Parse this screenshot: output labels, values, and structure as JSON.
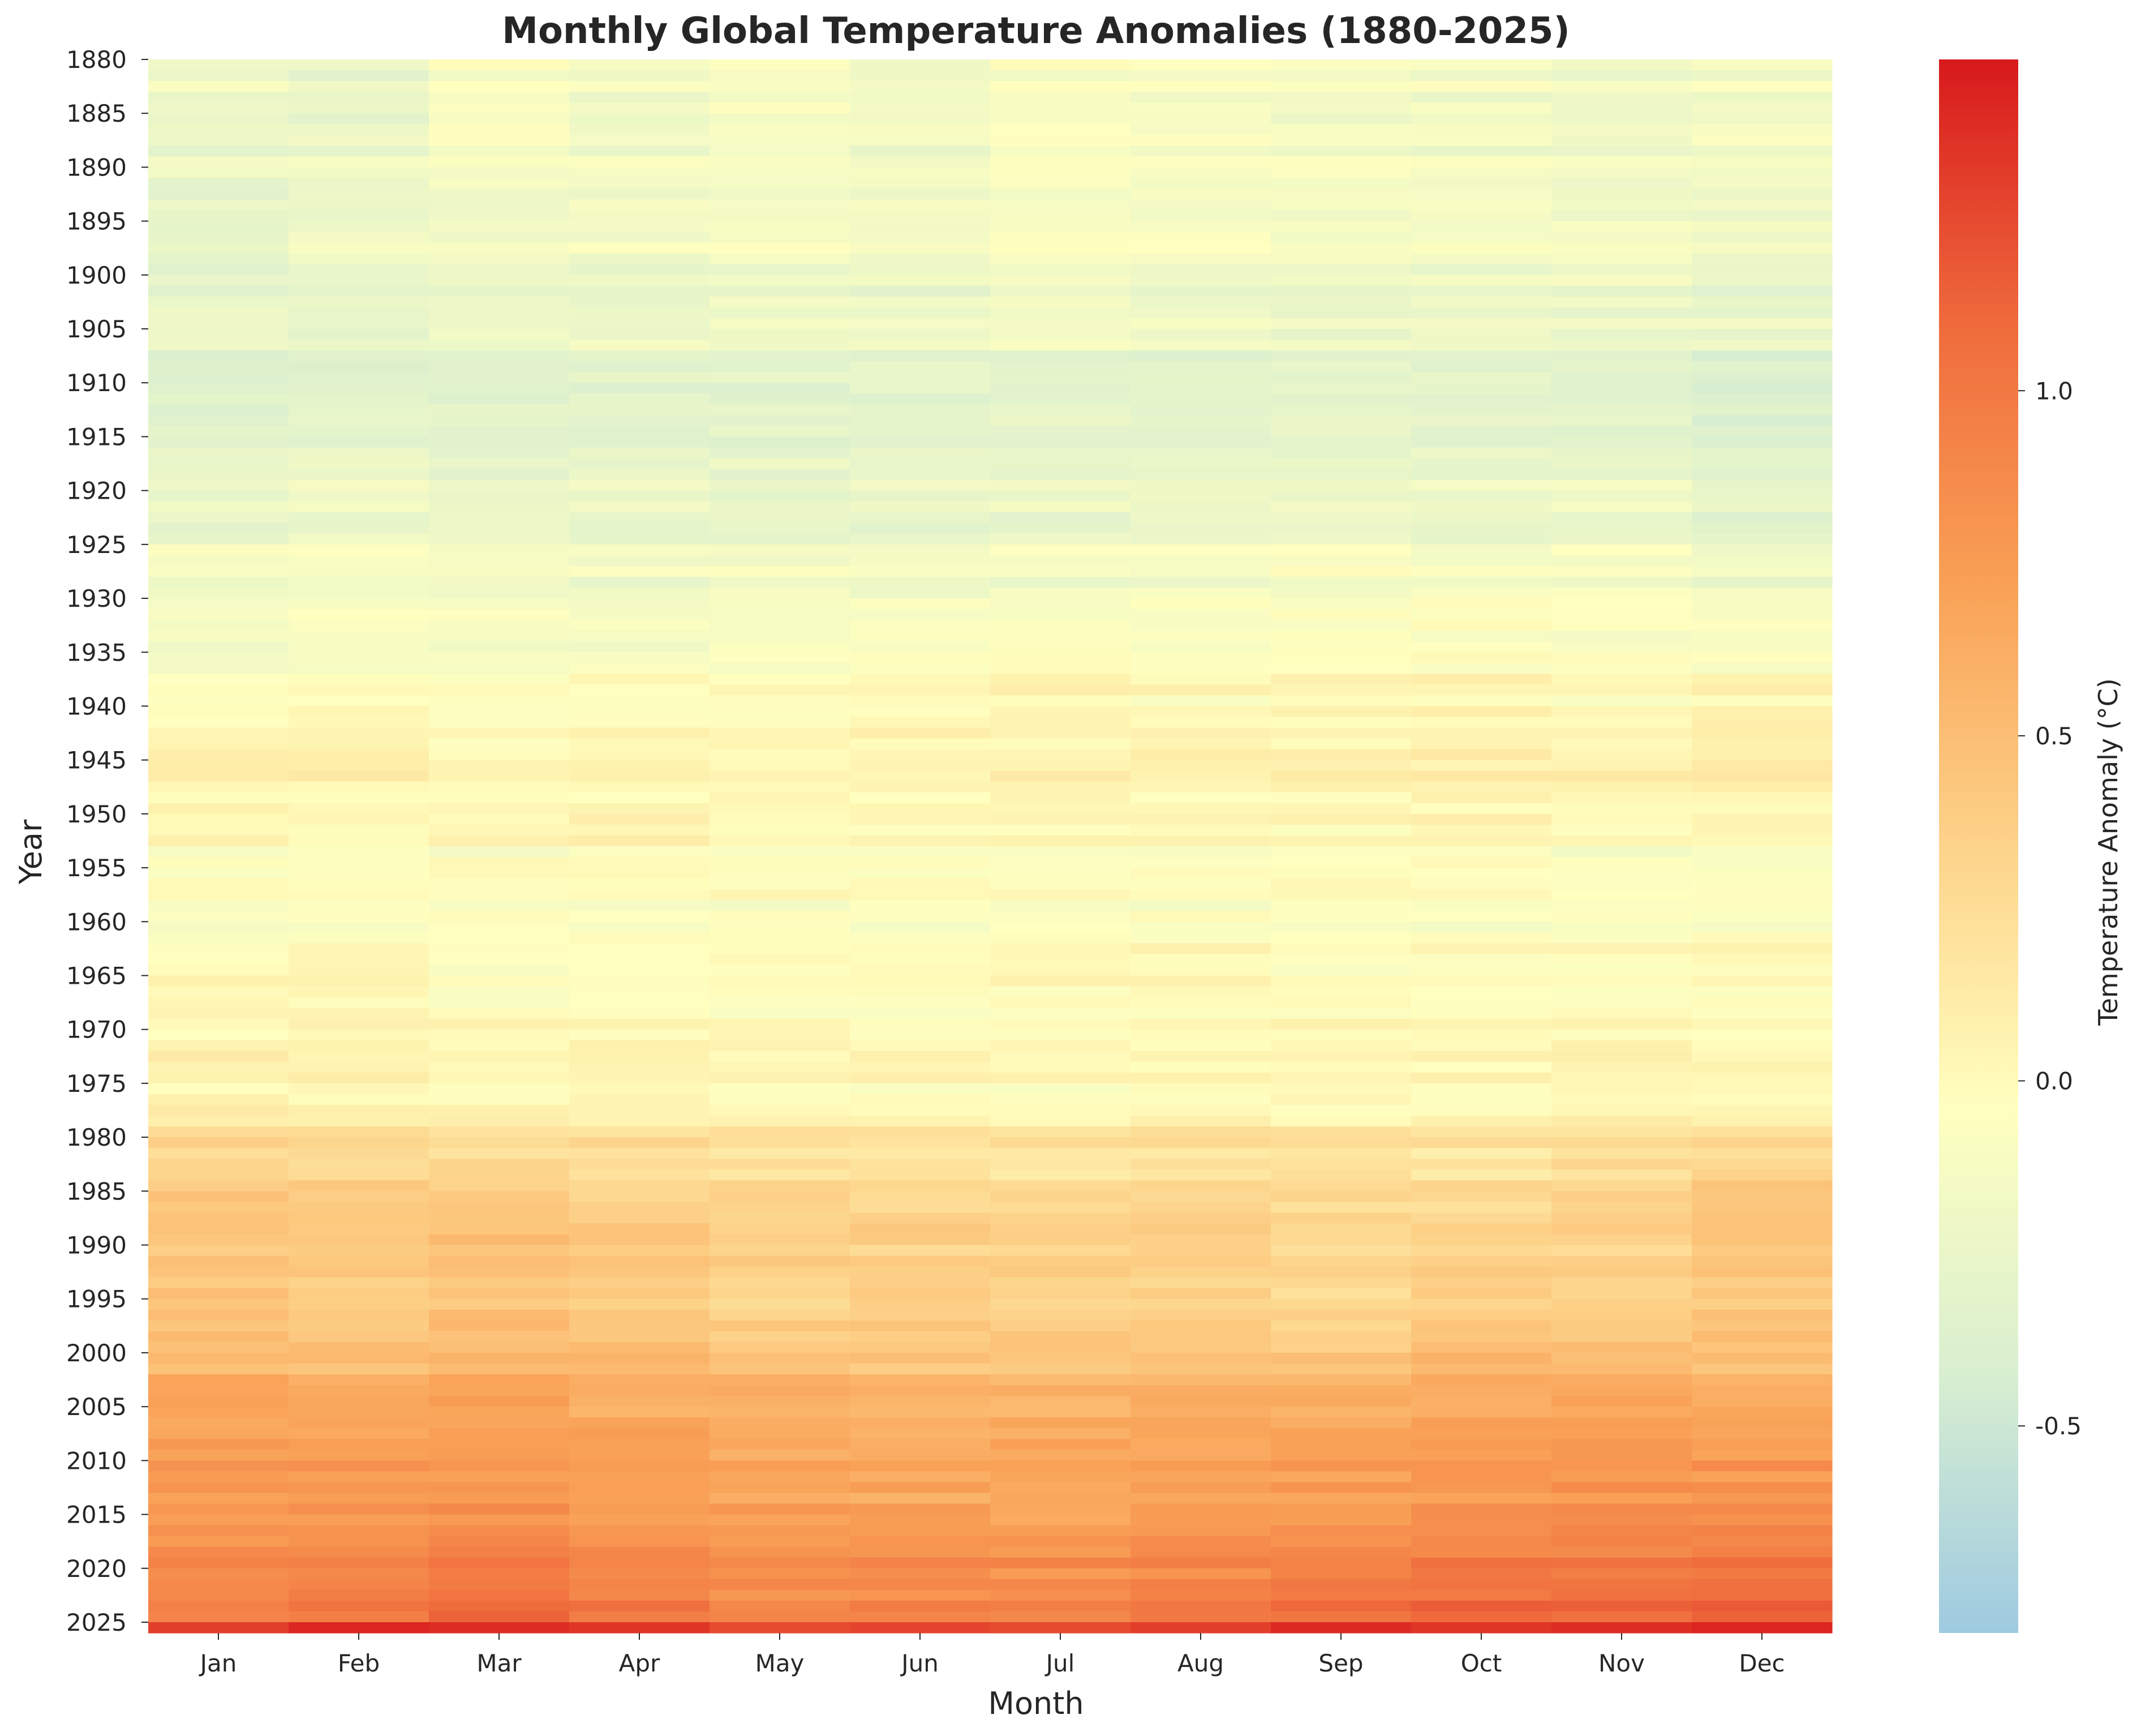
{
  "chart_data": {
    "type": "heatmap",
    "title": "Monthly Global Temperature Anomalies (1880-2025)",
    "xlabel": "Month",
    "ylabel": "Year",
    "x_ticks": [
      "Jan",
      "Feb",
      "Mar",
      "Apr",
      "May",
      "Jun",
      "Jul",
      "Aug",
      "Sep",
      "Oct",
      "Nov",
      "Dec"
    ],
    "year_range": [
      1880,
      2025
    ],
    "y_ticks": [
      "1880",
      "1885",
      "1890",
      "1895",
      "1900",
      "1905",
      "1910",
      "1915",
      "1920",
      "1925",
      "1930",
      "1935",
      "1940",
      "1945",
      "1950",
      "1955",
      "1960",
      "1965",
      "1970",
      "1975",
      "1980",
      "1985",
      "1990",
      "1995",
      "2000",
      "2005",
      "2010",
      "2015",
      "2020",
      "2025"
    ],
    "colorbar": {
      "label": "Temperature Anomaly (°C)",
      "range": [
        -0.8,
        1.48
      ],
      "ticks": [
        -0.5,
        0.0,
        0.5,
        1.0
      ],
      "tick_labels": [
        "-0.5",
        "0.0",
        "0.5",
        "1.0"
      ],
      "colors": [
        "#9ecae1",
        "#d9efd0",
        "#ffffbf",
        "#fdd38a",
        "#f9a156",
        "#ef6a3c",
        "#d7191c"
      ]
    },
    "decade_means": {
      "1880": [
        -0.2,
        -0.25,
        -0.1,
        -0.18,
        -0.12,
        -0.18,
        -0.08,
        -0.1,
        -0.14,
        -0.15,
        -0.18,
        -0.16
      ],
      "1890": [
        -0.28,
        -0.2,
        -0.18,
        -0.15,
        -0.12,
        -0.15,
        -0.1,
        -0.12,
        -0.12,
        -0.14,
        -0.14,
        -0.18
      ],
      "1900": [
        -0.25,
        -0.3,
        -0.22,
        -0.25,
        -0.25,
        -0.24,
        -0.22,
        -0.24,
        -0.26,
        -0.24,
        -0.26,
        -0.28
      ],
      "1910": [
        -0.35,
        -0.3,
        -0.36,
        -0.32,
        -0.32,
        -0.3,
        -0.28,
        -0.3,
        -0.3,
        -0.32,
        -0.32,
        -0.4
      ],
      "1920": [
        -0.2,
        -0.18,
        -0.18,
        -0.22,
        -0.22,
        -0.24,
        -0.2,
        -0.2,
        -0.18,
        -0.18,
        -0.18,
        -0.24
      ],
      "1930": [
        -0.14,
        -0.12,
        -0.14,
        -0.14,
        -0.1,
        -0.08,
        -0.06,
        -0.06,
        -0.04,
        -0.04,
        -0.06,
        -0.08
      ],
      "1940": [
        0.15,
        0.12,
        0.08,
        0.12,
        0.1,
        0.1,
        0.12,
        0.12,
        0.12,
        0.16,
        0.12,
        0.18
      ],
      "1950": [
        -0.05,
        -0.08,
        -0.06,
        -0.05,
        -0.04,
        -0.06,
        -0.06,
        -0.06,
        -0.06,
        -0.06,
        -0.08,
        -0.08
      ],
      "1960": [
        0.0,
        0.04,
        -0.02,
        -0.03,
        -0.02,
        0.0,
        0.0,
        0.02,
        0.0,
        -0.02,
        0.0,
        0.02
      ],
      "1970": [
        0.08,
        0.05,
        0.05,
        0.06,
        0.04,
        0.02,
        0.02,
        0.02,
        0.02,
        0.04,
        0.04,
        0.04
      ],
      "1980": [
        0.4,
        0.36,
        0.38,
        0.32,
        0.3,
        0.26,
        0.26,
        0.3,
        0.28,
        0.24,
        0.3,
        0.4
      ],
      "1990": [
        0.48,
        0.44,
        0.48,
        0.44,
        0.36,
        0.4,
        0.38,
        0.36,
        0.3,
        0.4,
        0.36,
        0.44
      ],
      "2000": [
        0.62,
        0.6,
        0.66,
        0.58,
        0.56,
        0.54,
        0.56,
        0.56,
        0.58,
        0.62,
        0.66,
        0.62
      ],
      "2010": [
        0.78,
        0.8,
        0.86,
        0.8,
        0.74,
        0.74,
        0.72,
        0.78,
        0.8,
        0.86,
        0.86,
        0.88
      ],
      "2020": [
        0.98,
        1.02,
        1.1,
        1.0,
        0.92,
        0.92,
        0.96,
        0.98,
        1.04,
        1.12,
        1.1,
        1.12
      ]
    },
    "final_year_row": [
      1.3,
      1.42,
      1.38,
      1.35,
      1.25,
      1.28,
      1.25,
      1.3,
      1.4,
      1.35,
      1.38,
      1.42
    ]
  }
}
